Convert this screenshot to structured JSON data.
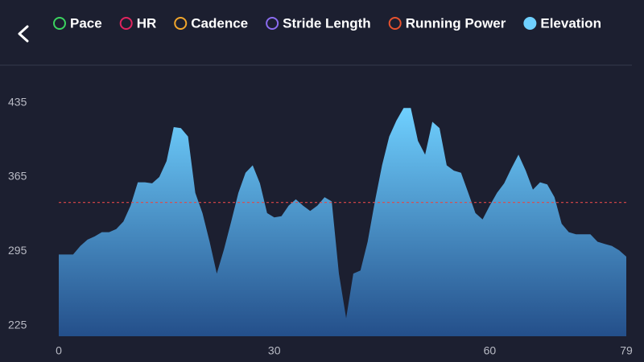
{
  "chart_data": {
    "type": "area",
    "legend": [
      {
        "name": "Pace",
        "color": "#3bd35f",
        "selected": false
      },
      {
        "name": "HR",
        "color": "#e0245e",
        "selected": false
      },
      {
        "name": "Cadence",
        "color": "#f2a62b",
        "selected": false
      },
      {
        "name": "Stride Length",
        "color": "#8b6cf0",
        "selected": false
      },
      {
        "name": "Running Power",
        "color": "#e8522e",
        "selected": false
      },
      {
        "name": "Elevation",
        "color": "#6fd0ff",
        "selected": true
      }
    ],
    "color": "#6fd0ff",
    "values": [
      292,
      292,
      292,
      300,
      306,
      309,
      313,
      313,
      316,
      323,
      338,
      360,
      360,
      359,
      365,
      380,
      412,
      411,
      403,
      350,
      331,
      304,
      274,
      297,
      323,
      350,
      369,
      376,
      359,
      331,
      327,
      328,
      338,
      344,
      338,
      333,
      338,
      346,
      342,
      274,
      232,
      274,
      277,
      304,
      342,
      376,
      403,
      418,
      430,
      430,
      399,
      386,
      417,
      411,
      376,
      371,
      369,
      350,
      331,
      325,
      338,
      350,
      359,
      373,
      386,
      371,
      353,
      360,
      358,
      346,
      321,
      313,
      311,
      311,
      311,
      304,
      302,
      300,
      296,
      290
    ],
    "reference_line": {
      "value": 341,
      "color": "#e04848"
    },
    "xlim": [
      0,
      79
    ],
    "xticks": [
      0,
      30,
      60,
      79
    ],
    "ylim": [
      215,
      440
    ],
    "yticks": [
      225,
      295,
      365,
      435
    ]
  }
}
